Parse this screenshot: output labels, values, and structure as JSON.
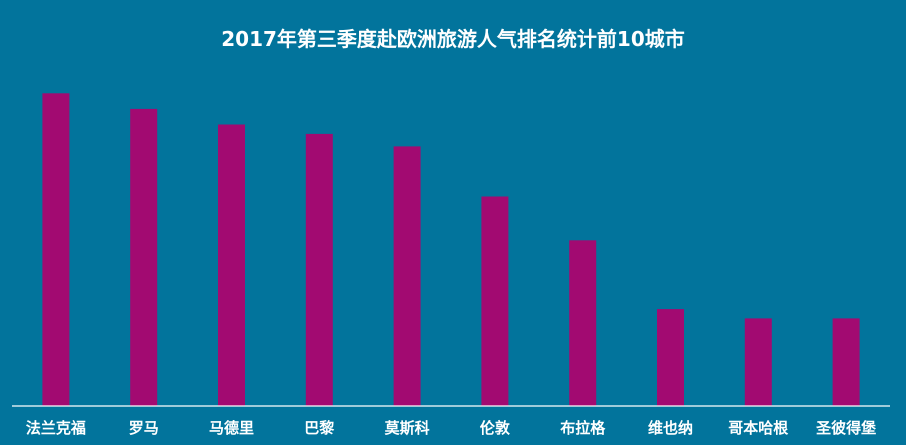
{
  "chart_data": {
    "type": "bar",
    "title": "2017年第三季度赴欧洲旅游人气排名统计前10城市",
    "categories": [
      "法兰克福",
      "罗马",
      "马德里",
      "巴黎",
      "莫斯科",
      "伦敦",
      "布拉格",
      "维也纳",
      "哥本哈根",
      "圣彼得堡"
    ],
    "values": [
      100,
      95,
      90,
      87,
      83,
      67,
      53,
      31,
      28,
      28
    ],
    "ylim": [
      0,
      110
    ],
    "xlabel": "",
    "ylabel": "",
    "grid": false,
    "legend": "none",
    "colors": {
      "background": "#02749c",
      "bar": "#a20a71",
      "text": "#ffffff",
      "axis": "#ffffff"
    }
  }
}
